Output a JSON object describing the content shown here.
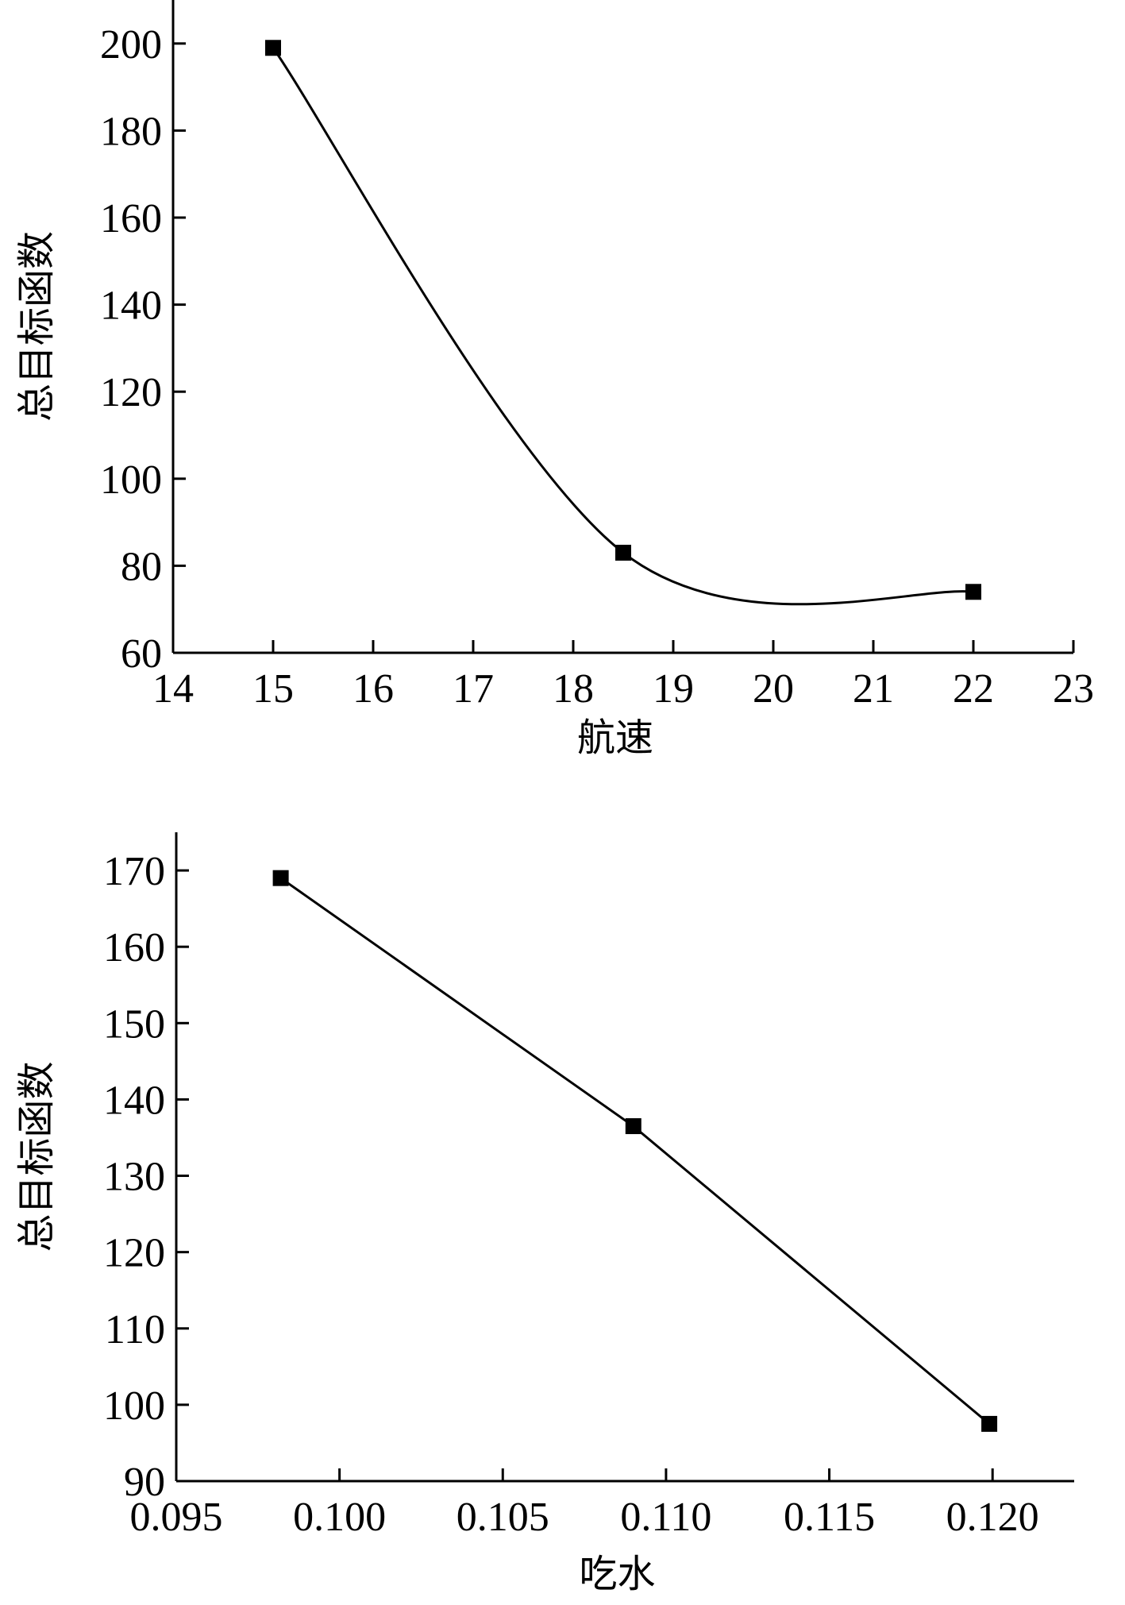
{
  "chart_data": [
    {
      "type": "line",
      "smooth": true,
      "title": "",
      "xlabel": "航速",
      "ylabel": "总目标函数",
      "xlim": [
        14,
        23
      ],
      "ylim": [
        60,
        210
      ],
      "x_ticks": [
        {
          "value": 14,
          "label": "14"
        },
        {
          "value": 15,
          "label": "15"
        },
        {
          "value": 16,
          "label": "16"
        },
        {
          "value": 17,
          "label": "17"
        },
        {
          "value": 18,
          "label": "18"
        },
        {
          "value": 19,
          "label": "19"
        },
        {
          "value": 20,
          "label": "20"
        },
        {
          "value": 21,
          "label": "21"
        },
        {
          "value": 22,
          "label": "22"
        },
        {
          "value": 23,
          "label": "23"
        }
      ],
      "y_ticks": [
        {
          "value": 60,
          "label": "60"
        },
        {
          "value": 80,
          "label": "80"
        },
        {
          "value": 100,
          "label": "100"
        },
        {
          "value": 120,
          "label": "120"
        },
        {
          "value": 140,
          "label": "140"
        },
        {
          "value": 160,
          "label": "160"
        },
        {
          "value": 180,
          "label": "180"
        },
        {
          "value": 200,
          "label": "200"
        }
      ],
      "series": [
        {
          "marker": "square",
          "color": "#000000",
          "points": [
            {
              "x": 15,
              "y": 199
            },
            {
              "x": 18.5,
              "y": 83
            },
            {
              "x": 22,
              "y": 74
            }
          ]
        }
      ],
      "grid": false
    },
    {
      "type": "line",
      "smooth": false,
      "title": "",
      "xlabel": "吃水",
      "ylabel": "总目标函数",
      "xlim": [
        0.095,
        0.1225
      ],
      "ylim": [
        90,
        175
      ],
      "x_ticks": [
        {
          "value": 0.095,
          "label": "0.095"
        },
        {
          "value": 0.1,
          "label": "0.100"
        },
        {
          "value": 0.105,
          "label": "0.105"
        },
        {
          "value": 0.11,
          "label": "0.110"
        },
        {
          "value": 0.115,
          "label": "0.115"
        },
        {
          "value": 0.12,
          "label": "0.120"
        }
      ],
      "y_ticks": [
        {
          "value": 90,
          "label": "90"
        },
        {
          "value": 100,
          "label": "100"
        },
        {
          "value": 110,
          "label": "110"
        },
        {
          "value": 120,
          "label": "120"
        },
        {
          "value": 130,
          "label": "130"
        },
        {
          "value": 140,
          "label": "140"
        },
        {
          "value": 150,
          "label": "150"
        },
        {
          "value": 160,
          "label": "160"
        },
        {
          "value": 170,
          "label": "170"
        }
      ],
      "series": [
        {
          "marker": "square",
          "color": "#000000",
          "points": [
            {
              "x": 0.0982,
              "y": 169
            },
            {
              "x": 0.109,
              "y": 136.5
            },
            {
              "x": 0.1199,
              "y": 97.5
            }
          ]
        }
      ],
      "grid": false
    }
  ]
}
